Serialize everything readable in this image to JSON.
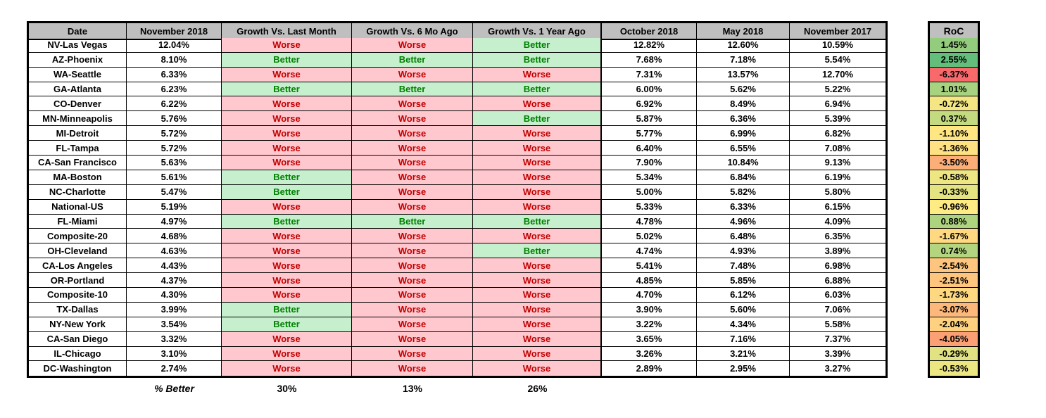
{
  "colors": {
    "header_bg": "#BFBFBF",
    "border": "#000000",
    "better_bg": "#C6EFCE",
    "better_text": "#008000",
    "worse_bg": "#FFC7CE",
    "worse_text": "#C00000",
    "text": "#000000",
    "background": "#FFFFFF"
  },
  "table": {
    "headers": [
      "Date",
      "November 2018",
      "Growth Vs. Last Month",
      "Growth Vs. 6 Mo Ago",
      "Growth Vs. 1 Year Ago",
      "October 2018",
      "May 2018",
      "November 2017"
    ],
    "rows": [
      {
        "date": "NV-Las Vegas",
        "nov2018": "12.04%",
        "vs_last_month": "Worse",
        "vs_6mo": "Worse",
        "vs_1yr": "Better",
        "oct2018": "12.82%",
        "may2018": "12.60%",
        "nov2017": "10.59%"
      },
      {
        "date": "AZ-Phoenix",
        "nov2018": "8.10%",
        "vs_last_month": "Better",
        "vs_6mo": "Better",
        "vs_1yr": "Better",
        "oct2018": "7.68%",
        "may2018": "7.18%",
        "nov2017": "5.54%"
      },
      {
        "date": "WA-Seattle",
        "nov2018": "6.33%",
        "vs_last_month": "Worse",
        "vs_6mo": "Worse",
        "vs_1yr": "Worse",
        "oct2018": "7.31%",
        "may2018": "13.57%",
        "nov2017": "12.70%"
      },
      {
        "date": "GA-Atlanta",
        "nov2018": "6.23%",
        "vs_last_month": "Better",
        "vs_6mo": "Better",
        "vs_1yr": "Better",
        "oct2018": "6.00%",
        "may2018": "5.62%",
        "nov2017": "5.22%"
      },
      {
        "date": "CO-Denver",
        "nov2018": "6.22%",
        "vs_last_month": "Worse",
        "vs_6mo": "Worse",
        "vs_1yr": "Worse",
        "oct2018": "6.92%",
        "may2018": "8.49%",
        "nov2017": "6.94%"
      },
      {
        "date": "MN-Minneapolis",
        "nov2018": "5.76%",
        "vs_last_month": "Worse",
        "vs_6mo": "Worse",
        "vs_1yr": "Better",
        "oct2018": "5.87%",
        "may2018": "6.36%",
        "nov2017": "5.39%"
      },
      {
        "date": "MI-Detroit",
        "nov2018": "5.72%",
        "vs_last_month": "Worse",
        "vs_6mo": "Worse",
        "vs_1yr": "Worse",
        "oct2018": "5.77%",
        "may2018": "6.99%",
        "nov2017": "6.82%"
      },
      {
        "date": "FL-Tampa",
        "nov2018": "5.72%",
        "vs_last_month": "Worse",
        "vs_6mo": "Worse",
        "vs_1yr": "Worse",
        "oct2018": "6.40%",
        "may2018": "6.55%",
        "nov2017": "7.08%"
      },
      {
        "date": "CA-San Francisco",
        "nov2018": "5.63%",
        "vs_last_month": "Worse",
        "vs_6mo": "Worse",
        "vs_1yr": "Worse",
        "oct2018": "7.90%",
        "may2018": "10.84%",
        "nov2017": "9.13%"
      },
      {
        "date": "MA-Boston",
        "nov2018": "5.61%",
        "vs_last_month": "Better",
        "vs_6mo": "Worse",
        "vs_1yr": "Worse",
        "oct2018": "5.34%",
        "may2018": "6.84%",
        "nov2017": "6.19%"
      },
      {
        "date": "NC-Charlotte",
        "nov2018": "5.47%",
        "vs_last_month": "Better",
        "vs_6mo": "Worse",
        "vs_1yr": "Worse",
        "oct2018": "5.00%",
        "may2018": "5.82%",
        "nov2017": "5.80%"
      },
      {
        "date": "National-US",
        "nov2018": "5.19%",
        "vs_last_month": "Worse",
        "vs_6mo": "Worse",
        "vs_1yr": "Worse",
        "oct2018": "5.33%",
        "may2018": "6.33%",
        "nov2017": "6.15%"
      },
      {
        "date": "FL-Miami",
        "nov2018": "4.97%",
        "vs_last_month": "Better",
        "vs_6mo": "Better",
        "vs_1yr": "Better",
        "oct2018": "4.78%",
        "may2018": "4.96%",
        "nov2017": "4.09%"
      },
      {
        "date": "Composite-20",
        "nov2018": "4.68%",
        "vs_last_month": "Worse",
        "vs_6mo": "Worse",
        "vs_1yr": "Worse",
        "oct2018": "5.02%",
        "may2018": "6.48%",
        "nov2017": "6.35%"
      },
      {
        "date": "OH-Cleveland",
        "nov2018": "4.63%",
        "vs_last_month": "Worse",
        "vs_6mo": "Worse",
        "vs_1yr": "Better",
        "oct2018": "4.74%",
        "may2018": "4.93%",
        "nov2017": "3.89%"
      },
      {
        "date": "CA-Los Angeles",
        "nov2018": "4.43%",
        "vs_last_month": "Worse",
        "vs_6mo": "Worse",
        "vs_1yr": "Worse",
        "oct2018": "5.41%",
        "may2018": "7.48%",
        "nov2017": "6.98%"
      },
      {
        "date": "OR-Portland",
        "nov2018": "4.37%",
        "vs_last_month": "Worse",
        "vs_6mo": "Worse",
        "vs_1yr": "Worse",
        "oct2018": "4.85%",
        "may2018": "5.85%",
        "nov2017": "6.88%"
      },
      {
        "date": "Composite-10",
        "nov2018": "4.30%",
        "vs_last_month": "Worse",
        "vs_6mo": "Worse",
        "vs_1yr": "Worse",
        "oct2018": "4.70%",
        "may2018": "6.12%",
        "nov2017": "6.03%"
      },
      {
        "date": "TX-Dallas",
        "nov2018": "3.99%",
        "vs_last_month": "Better",
        "vs_6mo": "Worse",
        "vs_1yr": "Worse",
        "oct2018": "3.90%",
        "may2018": "5.60%",
        "nov2017": "7.06%"
      },
      {
        "date": "NY-New York",
        "nov2018": "3.54%",
        "vs_last_month": "Better",
        "vs_6mo": "Worse",
        "vs_1yr": "Worse",
        "oct2018": "3.22%",
        "may2018": "4.34%",
        "nov2017": "5.58%"
      },
      {
        "date": "CA-San Diego",
        "nov2018": "3.32%",
        "vs_last_month": "Worse",
        "vs_6mo": "Worse",
        "vs_1yr": "Worse",
        "oct2018": "3.65%",
        "may2018": "7.16%",
        "nov2017": "7.37%"
      },
      {
        "date": "IL-Chicago",
        "nov2018": "3.10%",
        "vs_last_month": "Worse",
        "vs_6mo": "Worse",
        "vs_1yr": "Worse",
        "oct2018": "3.26%",
        "may2018": "3.21%",
        "nov2017": "3.39%"
      },
      {
        "date": "DC-Washington",
        "nov2018": "2.74%",
        "vs_last_month": "Worse",
        "vs_6mo": "Worse",
        "vs_1yr": "Worse",
        "oct2018": "2.89%",
        "may2018": "2.95%",
        "nov2017": "3.27%"
      }
    ]
  },
  "summary": {
    "label": "% Better",
    "vs_last_month": "30%",
    "vs_6mo": "13%",
    "vs_1yr": "26%"
  },
  "roc": {
    "header": "RoC",
    "values": [
      {
        "value": "1.45%",
        "color": "#94CC7E"
      },
      {
        "value": "2.55%",
        "color": "#63BE7B"
      },
      {
        "value": "-6.37%",
        "color": "#F8696B"
      },
      {
        "value": "1.01%",
        "color": "#A7D27F"
      },
      {
        "value": "-0.72%",
        "color": "#F4E783"
      },
      {
        "value": "0.37%",
        "color": "#C4DA81"
      },
      {
        "value": "-1.10%",
        "color": "#FEE783"
      },
      {
        "value": "-1.36%",
        "color": "#FEE182"
      },
      {
        "value": "-3.50%",
        "color": "#FCAE78"
      },
      {
        "value": "-0.58%",
        "color": "#EEE683"
      },
      {
        "value": "-0.33%",
        "color": "#E3E382"
      },
      {
        "value": "-0.96%",
        "color": "#FFEB84"
      },
      {
        "value": "0.88%",
        "color": "#ADD37F"
      },
      {
        "value": "-1.67%",
        "color": "#FED981"
      },
      {
        "value": "0.74%",
        "color": "#B3D580"
      },
      {
        "value": "-2.54%",
        "color": "#FDC57D"
      },
      {
        "value": "-2.51%",
        "color": "#FDC57D"
      },
      {
        "value": "-1.73%",
        "color": "#FED880"
      },
      {
        "value": "-3.07%",
        "color": "#FCB87A"
      },
      {
        "value": "-2.04%",
        "color": "#FDD17F"
      },
      {
        "value": "-4.05%",
        "color": "#FBA075"
      },
      {
        "value": "-0.29%",
        "color": "#E1E282"
      },
      {
        "value": "-0.53%",
        "color": "#EBE582"
      }
    ]
  }
}
